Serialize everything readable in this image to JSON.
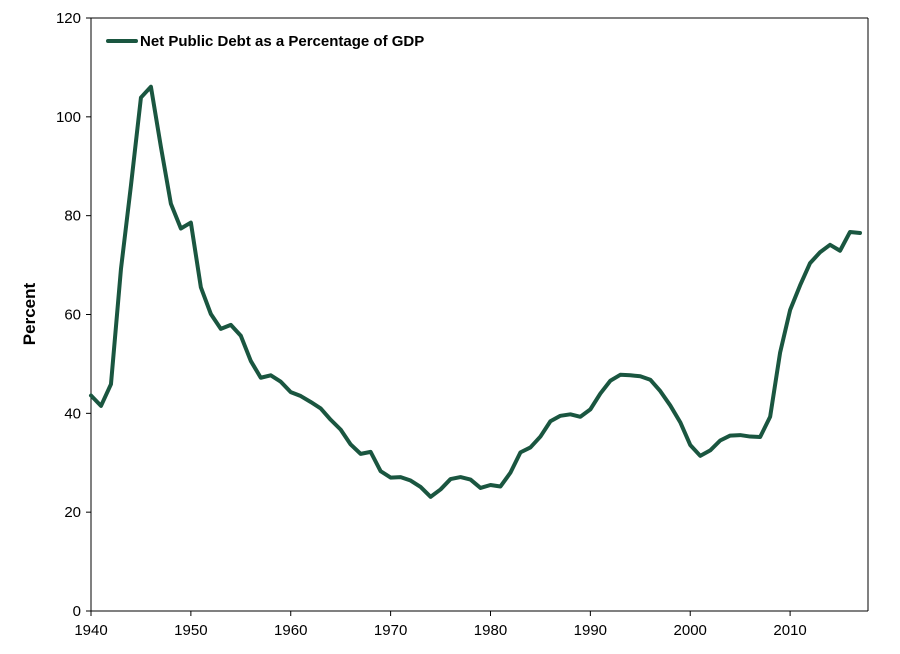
{
  "chart_data": {
    "type": "line",
    "title": "",
    "xlabel": "",
    "ylabel": "Percent",
    "xlim": [
      1940,
      2017.8
    ],
    "ylim": [
      0,
      120
    ],
    "x_ticks": [
      1940,
      1950,
      1960,
      1970,
      1980,
      1990,
      2000,
      2010
    ],
    "y_ticks": [
      0,
      20,
      40,
      60,
      80,
      100,
      120
    ],
    "grid": false,
    "legend_position": "top-left",
    "colors": {
      "series": "#1a5640"
    },
    "series": [
      {
        "name": "Net Public Debt as a Percentage of GDP",
        "x": [
          1940,
          1941,
          1942,
          1943,
          1944,
          1945,
          1946,
          1947,
          1948,
          1949,
          1950,
          1951,
          1952,
          1953,
          1954,
          1955,
          1956,
          1957,
          1958,
          1959,
          1960,
          1961,
          1962,
          1963,
          1964,
          1965,
          1966,
          1967,
          1968,
          1969,
          1970,
          1971,
          1972,
          1973,
          1974,
          1975,
          1976,
          1977,
          1978,
          1979,
          1980,
          1981,
          1982,
          1983,
          1984,
          1985,
          1986,
          1987,
          1988,
          1989,
          1990,
          1991,
          1992,
          1993,
          1994,
          1995,
          1996,
          1997,
          1998,
          1999,
          2000,
          2001,
          2002,
          2003,
          2004,
          2005,
          2006,
          2007,
          2008,
          2009,
          2010,
          2011,
          2012,
          2013,
          2014,
          2015,
          2016,
          2017
        ],
        "values": [
          43.6,
          41.5,
          45.9,
          69.2,
          86.1,
          103.9,
          106.1,
          93.9,
          82.4,
          77.4,
          78.6,
          65.5,
          60.1,
          57.1,
          57.9,
          55.7,
          50.6,
          47.2,
          47.7,
          46.4,
          44.3,
          43.5,
          42.3,
          41.0,
          38.7,
          36.7,
          33.7,
          31.8,
          32.2,
          28.3,
          27.0,
          27.1,
          26.4,
          25.1,
          23.1,
          24.6,
          26.7,
          27.1,
          26.6,
          24.9,
          25.5,
          25.2,
          28.0,
          32.1,
          33.1,
          35.3,
          38.4,
          39.5,
          39.8,
          39.3,
          40.8,
          44.0,
          46.6,
          47.8,
          47.7,
          47.5,
          46.8,
          44.5,
          41.6,
          38.2,
          33.6,
          31.4,
          32.5,
          34.5,
          35.5,
          35.6,
          35.3,
          35.2,
          39.3,
          52.3,
          60.9,
          65.9,
          70.4,
          72.6,
          74.1,
          72.9,
          76.7,
          76.5
        ]
      }
    ]
  }
}
